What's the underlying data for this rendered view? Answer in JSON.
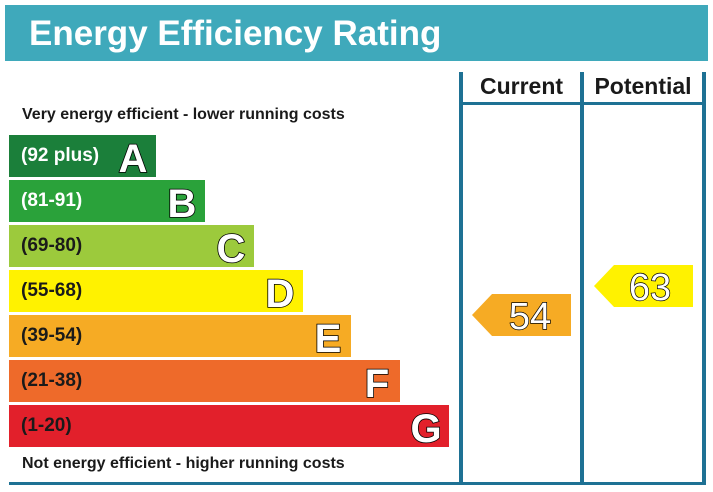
{
  "title": "Energy Efficiency Rating",
  "top_caption": "Very energy efficient - lower running costs",
  "bottom_caption": "Not energy efficient - higher running costs",
  "columns": {
    "current": "Current",
    "potential": "Potential"
  },
  "bands": [
    {
      "range": "(92 plus)",
      "letter": "A",
      "color": "#1b7f3a",
      "text_color": "#ffffff"
    },
    {
      "range": "(81-91)",
      "letter": "B",
      "color": "#2aa23a",
      "text_color": "#ffffff"
    },
    {
      "range": "(69-80)",
      "letter": "C",
      "color": "#9cca3c",
      "text_color": "#1a1a1a"
    },
    {
      "range": "(55-68)",
      "letter": "D",
      "color": "#fff200",
      "text_color": "#1a1a1a"
    },
    {
      "range": "(39-54)",
      "letter": "E",
      "color": "#f6ab24",
      "text_color": "#1a1a1a"
    },
    {
      "range": "(21-38)",
      "letter": "F",
      "color": "#ee6a2a",
      "text_color": "#1a1a1a"
    },
    {
      "range": "(1-20)",
      "letter": "G",
      "color": "#e2202b",
      "text_color": "#1a1a1a"
    }
  ],
  "current": {
    "value": "54",
    "band": "E",
    "color": "#f6ab24"
  },
  "potential": {
    "value": "63",
    "band": "D",
    "color": "#fff200"
  }
}
